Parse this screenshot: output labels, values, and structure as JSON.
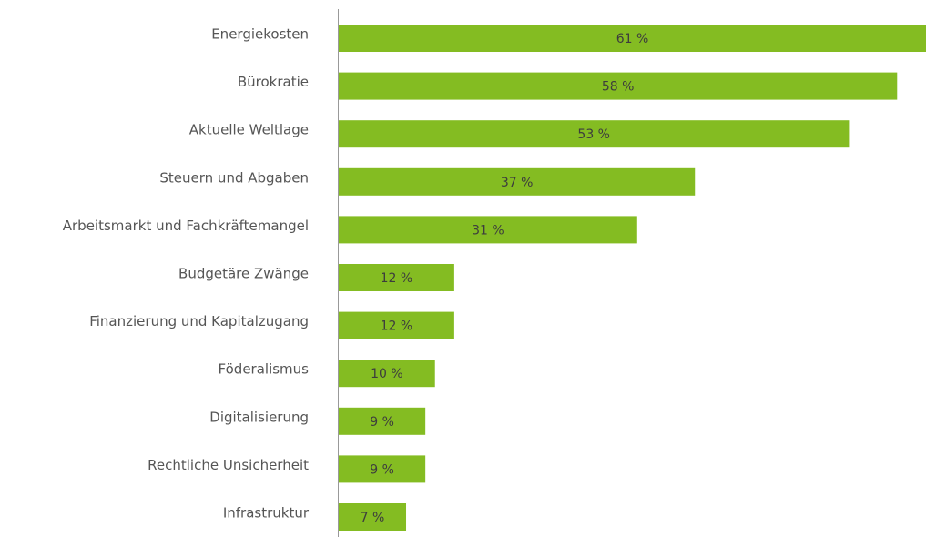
{
  "chart_data": {
    "type": "bar",
    "orientation": "horizontal",
    "categories": [
      "Energiekosten",
      "Bürokratie",
      "Aktuelle Weltlage",
      "Steuern und Abgaben",
      "Arbeitsmarkt und Fachkräftemangel",
      "Budgetäre Zwänge",
      "Finanzierung und Kapitalzugang",
      "Föderalismus",
      "Digitalisierung",
      "Rechtliche Unsicherheit",
      "Infrastruktur"
    ],
    "values": [
      61,
      58,
      53,
      37,
      31,
      12,
      12,
      10,
      9,
      9,
      7
    ],
    "value_labels": [
      "61 %",
      "58 %",
      "53 %",
      "37 %",
      "31 %",
      "12 %",
      "12 %",
      "10 %",
      "9 %",
      "9 %",
      "7 %"
    ],
    "color": "#84bc22"
  }
}
